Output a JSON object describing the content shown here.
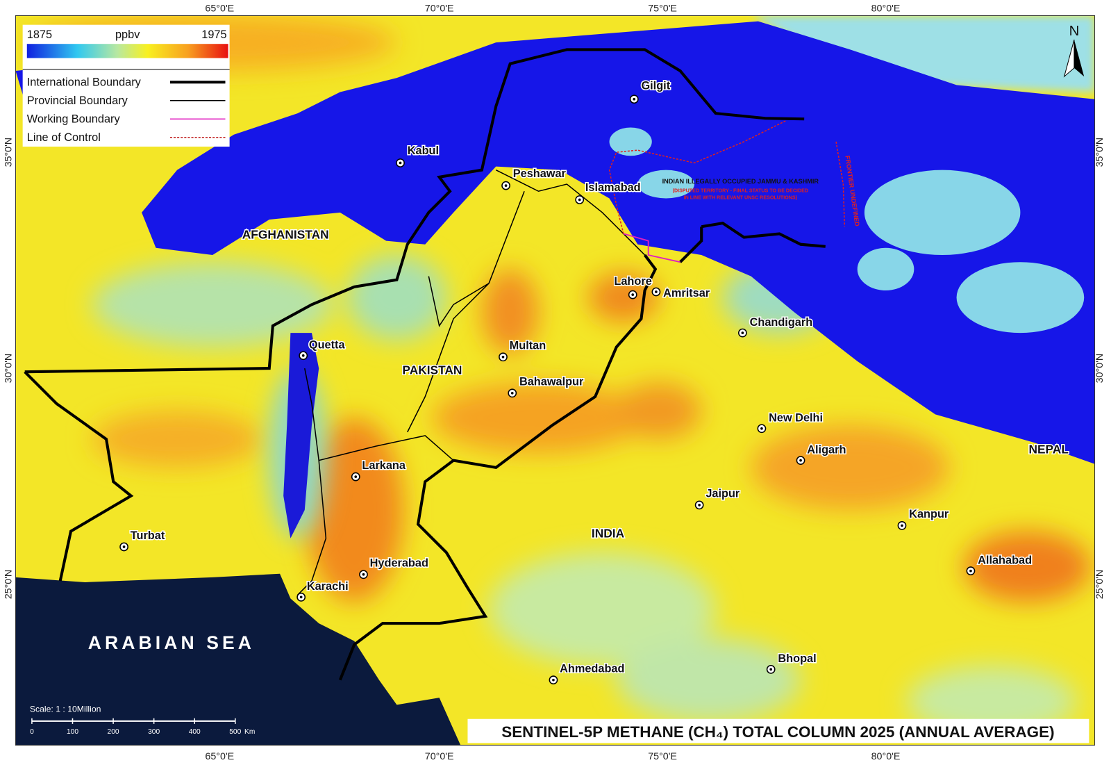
{
  "map": {
    "title": "SENTINEL-5P METHANE (CH₄) TOTAL COLUMN 2025 (ANNUAL AVERAGE)",
    "colorbar": {
      "min": 1875,
      "unit": "ppbv",
      "max": 1975
    },
    "legend": [
      "International Boundary",
      "Provincial Boundary",
      "Working Boundary",
      "Line of Control"
    ],
    "north": "N",
    "longitude_labels": [
      "65°0'E",
      "70°0'E",
      "75°0'E",
      "80°0'E"
    ],
    "latitude_labels": [
      "35°0'N",
      "30°0'N",
      "25°0'N"
    ],
    "countries": [
      "AFGHANISTAN",
      "PAKISTAN",
      "INDIA",
      "NEPAL"
    ],
    "sea": "ARABIAN SEA",
    "cities": [
      "Gilgit",
      "Kabul",
      "Peshawar",
      "Islamabad",
      "Lahore",
      "Amritsar",
      "Chandigarh",
      "Quetta",
      "Multan",
      "Bahawalpur",
      "New Delhi",
      "Aligarh",
      "Larkana",
      "Jaipur",
      "Kanpur",
      "Turbat",
      "Allahabad",
      "Hyderabad",
      "Karachi",
      "Bhopal",
      "Ahmedabad"
    ],
    "disputed": [
      "INDIAN ILLEGALLY OCCUPIED JAMMU & KASHMIR",
      "(DISPUTED TERRITORY - FINAL STATUS TO BE DECIDED",
      "IN LINE WITH RELEVANT UNSC RESOLUTIONS)",
      "FRONTIER UNDEFINED"
    ],
    "scale": {
      "text": "Scale: 1 : 10Million",
      "ticks": [
        "0",
        "100",
        "200",
        "300",
        "400",
        "500"
      ],
      "unit": "Km"
    }
  }
}
